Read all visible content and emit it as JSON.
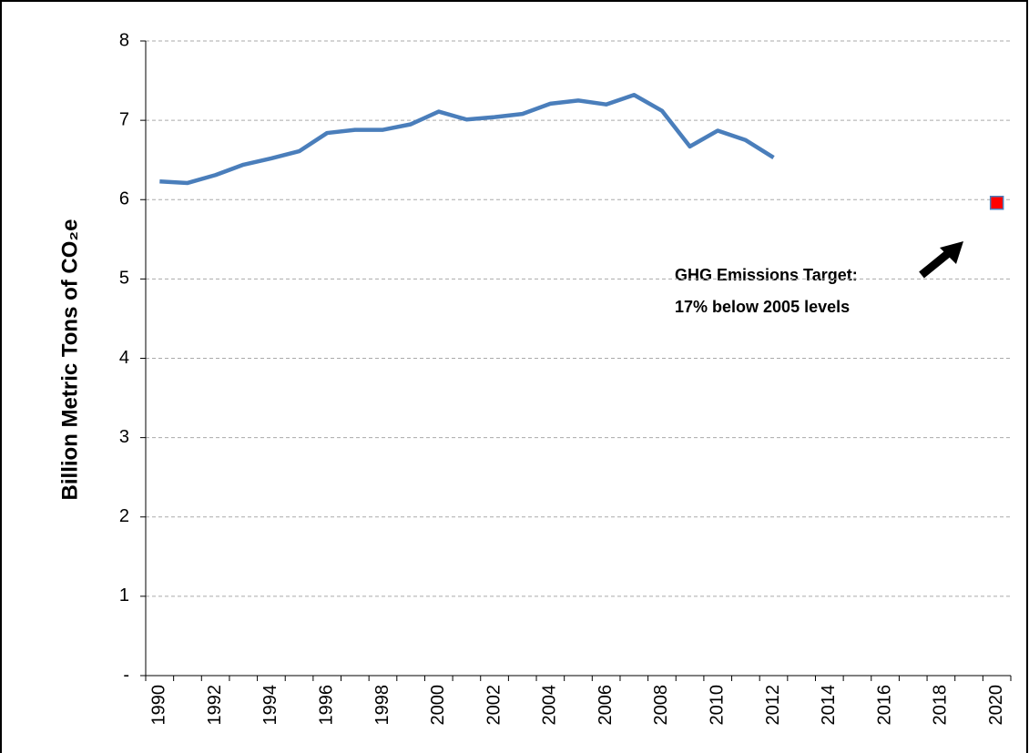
{
  "chart_data": {
    "type": "line",
    "y_label": "Billion Metric Tons of CO₂e",
    "annotation": [
      "GHG Emissions Target:",
      "17% below 2005 levels"
    ],
    "categories": [
      "1990",
      null,
      "1992",
      null,
      "1994",
      null,
      "1996",
      null,
      "1998",
      null,
      "2000",
      null,
      "2002",
      null,
      "2004",
      null,
      "2006",
      null,
      "2008",
      null,
      "2010",
      null,
      "2012",
      null,
      "2014",
      null,
      "2016",
      null,
      "2018",
      null,
      "2020"
    ],
    "series": [
      {
        "color": "#4a7ebb",
        "style": "line",
        "values": [
          6.23,
          6.21,
          6.31,
          6.44,
          6.52,
          6.61,
          6.84,
          6.88,
          6.88,
          6.95,
          7.11,
          7.01,
          7.04,
          7.08,
          7.21,
          7.25,
          7.2,
          7.32,
          7.12,
          6.67,
          6.87,
          6.75,
          6.53,
          null,
          null,
          null,
          null,
          null,
          null,
          null,
          null
        ]
      },
      {
        "color": "#ff0000",
        "style": "marker",
        "values": [
          null,
          null,
          null,
          null,
          null,
          null,
          null,
          null,
          null,
          null,
          null,
          null,
          null,
          null,
          null,
          null,
          null,
          null,
          null,
          null,
          null,
          null,
          null,
          null,
          null,
          null,
          null,
          null,
          null,
          null,
          5.96
        ]
      }
    ],
    "ylim": [
      0,
      8
    ],
    "yticks": [
      {
        "value": 0,
        "label": "-"
      },
      1,
      2,
      3,
      4,
      5,
      6,
      7,
      8
    ],
    "grid": true
  }
}
